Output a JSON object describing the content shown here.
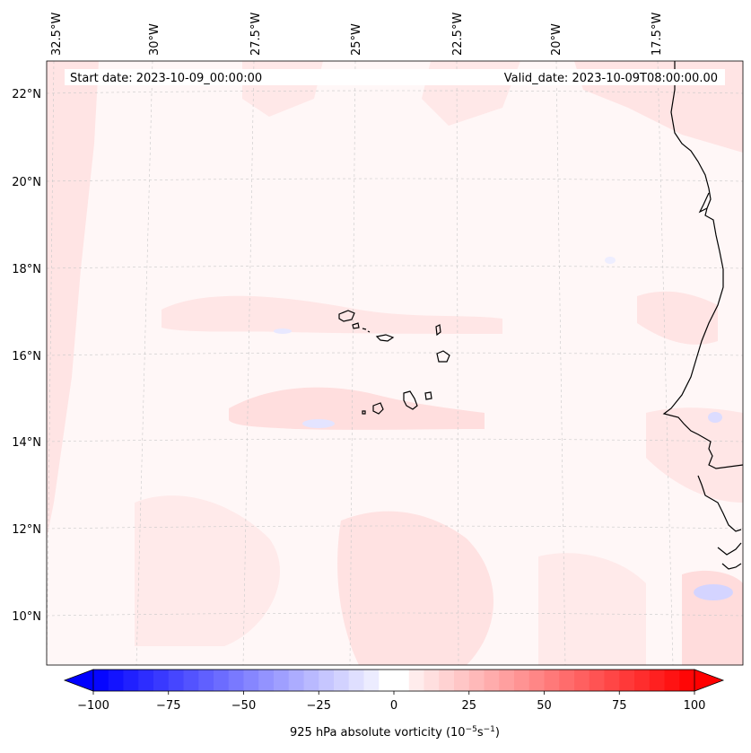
{
  "map": {
    "start_date": "Start date: 2023-10-09_00:00:00",
    "valid_date": "Valid_date: 2023-10-09T08:00:00.00",
    "lon_labels": [
      "32.5°W",
      "30°W",
      "27.5°W",
      "25°W",
      "22.5°W",
      "20°W",
      "17.5°W"
    ],
    "lat_labels": [
      "22°N",
      "20°N",
      "18°N",
      "16°N",
      "14°N",
      "12°N",
      "10°N"
    ]
  },
  "colorbar": {
    "ticks": [
      "−100",
      "−75",
      "−50",
      "−25",
      "0",
      "25",
      "50",
      "75",
      "100"
    ],
    "label_prefix": "925 hPa absolute vorticity (10",
    "label_exp1": "−5",
    "label_mid": "s",
    "label_exp2": "−1",
    "label_suffix": ")",
    "min": -100,
    "max": 100,
    "levels": 40,
    "low_color": "#0000ff",
    "high_color": "#ff0000"
  }
}
